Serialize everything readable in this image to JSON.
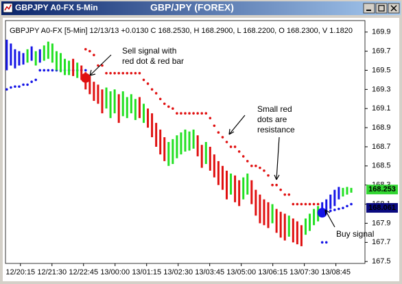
{
  "window": {
    "title": "GBPJPY A0-FX 5-Min"
  },
  "chart_data": {
    "type": "ohlc",
    "title": "GBP/JPY (FOREX)",
    "subtitle": "GBPJPY A0-FX [5-Min] 12/13/13 +0.0130 C 168.2530, H 168.2900, L 168.2200, O 168.2300, V 1.1820",
    "xlim": [
      -0.3,
      86.3
    ],
    "xticks": [
      {
        "value": 3.3,
        "label": "12/20:15"
      },
      {
        "value": 10.9,
        "label": "12/21:30"
      },
      {
        "value": 18.5,
        "label": "12/22:45"
      },
      {
        "value": 26.1,
        "label": "13/00:00"
      },
      {
        "value": 33.7,
        "label": "13/01:15"
      },
      {
        "value": 41.3,
        "label": "13/02:30"
      },
      {
        "value": 48.9,
        "label": "13/03:45"
      },
      {
        "value": 56.5,
        "label": "13/05:00"
      },
      {
        "value": 64.1,
        "label": "13/06:15"
      },
      {
        "value": 71.7,
        "label": "13/07:30"
      },
      {
        "value": 79.3,
        "label": "13/08:45"
      }
    ],
    "ylim": [
      167.48,
      170.02
    ],
    "yticks": [
      167.5,
      167.7,
      167.9,
      168.1,
      168.3,
      168.5,
      168.7,
      168.9,
      169.1,
      169.3,
      169.5,
      169.7,
      169.9
    ],
    "grid": false,
    "bars": {
      "high": [
        169.82,
        169.78,
        169.72,
        169.7,
        169.68,
        169.72,
        169.75,
        169.7,
        169.72,
        169.76,
        169.8,
        169.78,
        169.7,
        169.68,
        169.62,
        169.6,
        169.62,
        169.58,
        169.55,
        169.48,
        169.44,
        169.38,
        169.35,
        169.3,
        169.32,
        169.28,
        169.3,
        169.25,
        169.28,
        169.22,
        169.25,
        169.2,
        169.22,
        169.15,
        169.1,
        169.05,
        168.95,
        168.88,
        168.8,
        168.75,
        168.78,
        168.82,
        168.85,
        168.88,
        168.86,
        168.88,
        168.82,
        168.72,
        168.75,
        168.7,
        168.62,
        168.55,
        168.5,
        168.45,
        168.42,
        168.4,
        168.35,
        168.38,
        168.42,
        168.35,
        168.25,
        168.2,
        168.15,
        168.12,
        168.1,
        168.05,
        168.02,
        168.0,
        167.98,
        167.95,
        167.92,
        167.88,
        167.95,
        168.0,
        168.05,
        168.08,
        168.12,
        168.15,
        168.2,
        168.25,
        168.28,
        168.27,
        168.28,
        168.27
      ],
      "low": [
        169.5,
        169.55,
        169.52,
        169.55,
        169.56,
        169.58,
        169.6,
        169.55,
        169.58,
        169.6,
        169.62,
        169.58,
        169.5,
        169.48,
        169.45,
        169.45,
        169.44,
        169.42,
        169.4,
        169.3,
        169.25,
        169.18,
        169.15,
        169.05,
        169.1,
        169.0,
        169.05,
        168.95,
        169.02,
        169.0,
        169.05,
        168.98,
        169.0,
        168.95,
        168.9,
        168.8,
        168.7,
        168.62,
        168.55,
        168.5,
        168.52,
        168.58,
        168.62,
        168.65,
        168.66,
        168.68,
        168.6,
        168.48,
        168.52,
        168.45,
        168.38,
        168.3,
        168.25,
        168.15,
        168.2,
        168.12,
        168.08,
        168.15,
        168.2,
        168.1,
        167.98,
        167.9,
        167.88,
        167.85,
        167.9,
        167.8,
        167.75,
        167.72,
        167.76,
        167.7,
        167.68,
        167.66,
        167.78,
        167.82,
        167.88,
        167.92,
        167.98,
        168.0,
        168.05,
        168.08,
        168.15,
        168.18,
        168.2,
        168.22
      ],
      "colors": [
        "#1414e6",
        "#1414e6",
        "#1414e6",
        "#1414e6",
        "#1414e6",
        "#22e022",
        "#1414e6",
        "#22e022",
        "#1414e6",
        "#22e022",
        "#22e022",
        "#22e022",
        "#22e022",
        "#22e022",
        "#22e022",
        "#22e022",
        "#e01010",
        "#22e022",
        "#e01010",
        "#e01010",
        "#e01010",
        "#e01010",
        "#e01010",
        "#e01010",
        "#22e022",
        "#22e022",
        "#22e022",
        "#e01010",
        "#22e022",
        "#22e022",
        "#22e022",
        "#22e022",
        "#e01010",
        "#22e022",
        "#e01010",
        "#e01010",
        "#e01010",
        "#e01010",
        "#e01010",
        "#22e022",
        "#22e022",
        "#22e022",
        "#22e022",
        "#22e022",
        "#22e022",
        "#22e022",
        "#e01010",
        "#e01010",
        "#22e022",
        "#e01010",
        "#e01010",
        "#e01010",
        "#e01010",
        "#e01010",
        "#22e022",
        "#e01010",
        "#e01010",
        "#22e022",
        "#22e022",
        "#e01010",
        "#e01010",
        "#e01010",
        "#e01010",
        "#e01010",
        "#22e022",
        "#e01010",
        "#e01010",
        "#e01010",
        "#22e022",
        "#e01010",
        "#e01010",
        "#e01010",
        "#22e022",
        "#22e022",
        "#22e022",
        "#22e022",
        "#1414e6",
        "#1414e6",
        "#1414e6",
        "#1414e6",
        "#1414e6",
        "#22e022",
        "#22e022",
        "#22e022"
      ]
    },
    "dots": [
      {
        "color": "#e01010",
        "values": [
          null,
          null,
          null,
          null,
          null,
          null,
          null,
          null,
          null,
          null,
          null,
          null,
          null,
          null,
          null,
          null,
          null,
          null,
          null,
          169.72,
          169.7,
          169.66,
          169.55,
          169.55,
          169.47,
          169.47,
          169.47,
          169.47,
          169.47,
          169.47,
          169.47,
          169.47,
          169.47,
          169.4,
          169.36,
          169.3,
          169.26,
          169.2,
          169.15,
          169.12,
          169.1,
          169.05,
          169.05,
          169.05,
          169.05,
          169.05,
          169.05,
          169.05,
          169.05,
          169.0,
          168.92,
          168.85,
          168.8,
          168.75,
          168.7,
          168.7,
          168.65,
          168.6,
          168.55,
          168.5,
          168.5,
          168.48,
          168.45,
          168.4,
          168.3,
          168.3,
          168.25,
          168.2,
          168.2,
          168.1,
          168.1,
          168.1,
          168.1,
          168.1,
          168.1,
          168.1,
          null,
          null,
          null,
          null,
          null,
          null,
          null,
          null
        ]
      },
      {
        "color": "#1414e6",
        "values": [
          169.3,
          169.32,
          169.33,
          169.33,
          169.35,
          169.35,
          169.38,
          169.4,
          169.5,
          169.5,
          169.5,
          169.5,
          169.5,
          169.5,
          169.5,
          169.5,
          169.5,
          169.5,
          169.5,
          169.5,
          null,
          null,
          null,
          null,
          null,
          null,
          null,
          null,
          null,
          null,
          null,
          null,
          null,
          null,
          null,
          null,
          null,
          null,
          null,
          null,
          null,
          null,
          null,
          null,
          null,
          null,
          null,
          null,
          null,
          null,
          null,
          null,
          null,
          null,
          null,
          null,
          null,
          null,
          null,
          null,
          null,
          null,
          null,
          null,
          null,
          null,
          null,
          null,
          null,
          null,
          null,
          null,
          null,
          null,
          null,
          null,
          167.7,
          167.7,
          168.03,
          168.04,
          168.05,
          168.06,
          168.08,
          168.1
        ]
      }
    ],
    "signals": [
      {
        "x": 19,
        "value": 169.42,
        "color": "#e01010"
      },
      {
        "x": 76,
        "value": 168.01,
        "color": "#1414e6"
      }
    ],
    "price_labels": [
      {
        "value": 168.253,
        "color": "#33d633"
      },
      {
        "value": 168.061,
        "color": "#0a0a80"
      }
    ],
    "annotations": [
      {
        "lines": [
          "Sell signal with",
          "red dot & red bar"
        ]
      },
      {
        "lines": [
          "Small red",
          "dots are",
          "resistance"
        ]
      },
      {
        "lines": [
          "Buy signal"
        ]
      }
    ]
  }
}
